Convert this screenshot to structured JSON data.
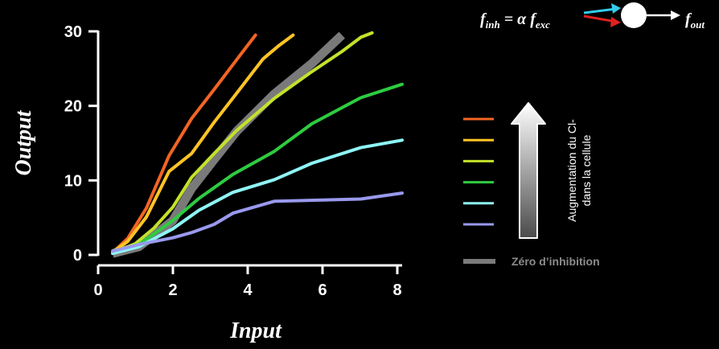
{
  "chart_data": {
    "type": "line",
    "xlabel": "Input",
    "ylabel": "Output",
    "xlim": [
      0,
      8
    ],
    "ylim": [
      0,
      30
    ],
    "xticks": [
      "0",
      "2",
      "4",
      "6",
      "8"
    ],
    "yticks": [
      "0",
      "10",
      "20",
      "30"
    ],
    "grid": false,
    "legend": "right, colored swatches stacked beside an upward arrow",
    "series": [
      {
        "color": "#f26522",
        "points": [
          [
            0.3,
            0.3
          ],
          [
            0.7,
            2.2
          ],
          [
            1.2,
            6.3
          ],
          [
            1.8,
            13.3
          ],
          [
            2.4,
            18.3
          ],
          [
            3.0,
            22.2
          ],
          [
            3.6,
            26.2
          ],
          [
            4.1,
            29.5
          ]
        ]
      },
      {
        "color": "#ffc425",
        "points": [
          [
            0.3,
            0.4
          ],
          [
            0.7,
            1.8
          ],
          [
            1.2,
            5.1
          ],
          [
            1.8,
            11.2
          ],
          [
            2.4,
            13.6
          ],
          [
            3.0,
            17.8
          ],
          [
            3.6,
            21.7
          ],
          [
            4.3,
            26.3
          ],
          [
            4.7,
            28.0
          ],
          [
            5.1,
            29.5
          ]
        ]
      },
      {
        "color": "#c3e22b",
        "points": [
          [
            0.3,
            0.3
          ],
          [
            0.9,
            1.5
          ],
          [
            1.4,
            3.6
          ],
          [
            1.9,
            6.4
          ],
          [
            2.4,
            10.4
          ],
          [
            3.0,
            13.6
          ],
          [
            3.6,
            16.7
          ],
          [
            4.6,
            21.0
          ],
          [
            5.6,
            24.6
          ],
          [
            6.4,
            27.3
          ],
          [
            6.9,
            29.2
          ],
          [
            7.2,
            29.8
          ]
        ]
      },
      {
        "color": "#2ecc40",
        "points": [
          [
            0.3,
            0.3
          ],
          [
            1.0,
            1.4
          ],
          [
            1.9,
            4.6
          ],
          [
            2.6,
            7.6
          ],
          [
            3.5,
            10.8
          ],
          [
            4.6,
            13.9
          ],
          [
            5.6,
            17.6
          ],
          [
            6.9,
            21.1
          ],
          [
            8.0,
            22.9
          ]
        ]
      },
      {
        "color": "#8ff5f5",
        "points": [
          [
            0.3,
            0.2
          ],
          [
            1.0,
            1.1
          ],
          [
            1.9,
            3.5
          ],
          [
            2.6,
            6.0
          ],
          [
            3.5,
            8.4
          ],
          [
            4.6,
            10.1
          ],
          [
            5.6,
            12.3
          ],
          [
            6.9,
            14.4
          ],
          [
            8.0,
            15.4
          ]
        ]
      },
      {
        "color": "#9999ee",
        "points": [
          [
            0.3,
            0.5
          ],
          [
            1.0,
            1.4
          ],
          [
            1.9,
            2.3
          ],
          [
            2.4,
            3.0
          ],
          [
            3.0,
            4.1
          ],
          [
            3.5,
            5.6
          ],
          [
            4.6,
            7.2
          ],
          [
            6.9,
            7.5
          ],
          [
            8.0,
            8.3
          ]
        ]
      },
      {
        "color": "#7a7a7a",
        "name": "Zéro d’inhibition",
        "points": [
          [
            0.3,
            0.2
          ],
          [
            1.0,
            1.1
          ],
          [
            1.9,
            4.6
          ],
          [
            2.4,
            8.9
          ],
          [
            3.0,
            12.8
          ],
          [
            3.6,
            16.6
          ],
          [
            4.6,
            21.6
          ],
          [
            5.6,
            25.7
          ],
          [
            6.4,
            29.5
          ]
        ]
      }
    ]
  },
  "legend": {
    "zero_inhibition_label": "Zéro d’inhibition",
    "arrow_label_line1": "Augmentation du Cl-",
    "arrow_label_line2": "dans la cellule"
  },
  "formula": {
    "lhs": "f",
    "lhs_sub": "inh",
    "equals": " = α ",
    "rhs": "f",
    "rhs_sub": "exc",
    "out": "f",
    "out_sub": "out"
  },
  "colors": {
    "background": "#000000",
    "excitatory_arrow": "#33ccee",
    "inhibitory_arrow": "#e02020",
    "arrow_gradient_top": "#ffffff",
    "arrow_gradient_bottom": "#5a5a5a"
  }
}
